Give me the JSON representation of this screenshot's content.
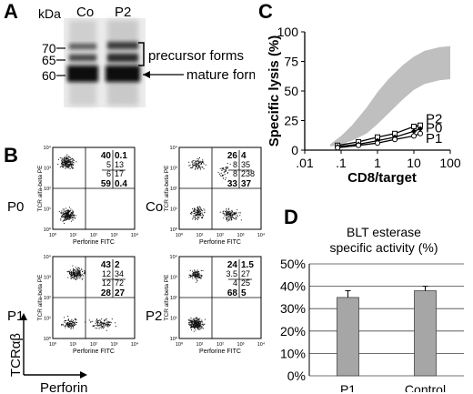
{
  "panels": {
    "a": "A",
    "b": "B",
    "c": "C",
    "d": "D"
  },
  "blot": {
    "kda_label": "kDa",
    "lanes": [
      "Co",
      "P2"
    ],
    "markers": [
      "70",
      "65",
      "60"
    ],
    "precursor_label": "precursor forms",
    "mature_label": "mature form"
  },
  "flow": {
    "x_axis_label": "Perforine FITC",
    "y_axis_label": "TCR alfa-beta PE",
    "outer_x_label": "Perforin",
    "outer_y_label": "TCRαβ",
    "tick_labels": [
      "10⁰",
      "10¹",
      "10²",
      "10³",
      "10⁴"
    ],
    "plots": [
      {
        "name": "P0",
        "q": {
          "tl": "40",
          "tr": "0.1",
          "bl": "59",
          "br": "0.4"
        },
        "inner": {
          "tl": "5",
          "tr": "13",
          "bl": "6",
          "br": "17"
        }
      },
      {
        "name": "Co",
        "q": {
          "tl": "26",
          "tr": "4",
          "bl": "33",
          "br": "37"
        },
        "inner": {
          "tl": "8",
          "tr": "35",
          "bl": "8",
          "br": "238"
        }
      },
      {
        "name": "P1",
        "q": {
          "tl": "43",
          "tr": "2",
          "bl": "28",
          "br": "27"
        },
        "inner": {
          "tl": "12",
          "tr": "34",
          "bl": "12",
          "br": "72"
        }
      },
      {
        "name": "P2",
        "q": {
          "tl": "24",
          "tr": "1.5",
          "bl": "68",
          "br": "5"
        },
        "inner": {
          "tl": "3.5",
          "tr": "27",
          "bl": "4",
          "br": "25"
        }
      }
    ]
  },
  "chart_data": [
    {
      "type": "line",
      "ylabel": "Specific lysis (%)",
      "xlabel": "CD8/target",
      "x_scale": "log",
      "xlim": [
        0.01,
        100
      ],
      "ylim": [
        0,
        100
      ],
      "x_ticks": [
        ".01",
        ".1",
        "1",
        "10",
        "100"
      ],
      "y_ticks": [
        "0",
        "25",
        "50",
        "75",
        "100"
      ],
      "normal_range": {
        "x": [
          0.05,
          0.1,
          0.2,
          0.5,
          1,
          2,
          5,
          10,
          20,
          50,
          100
        ],
        "lower": [
          3,
          5,
          8,
          14,
          22,
          31,
          43,
          51,
          56,
          59,
          60
        ],
        "upper": [
          5,
          12,
          21,
          36,
          49,
          60,
          72,
          79,
          84,
          87,
          88
        ]
      },
      "series": [
        {
          "name": "P2",
          "marker": "square-open",
          "x": [
            0.08,
            0.3,
            1,
            3,
            10,
            15
          ],
          "y": [
            4,
            7,
            11,
            14,
            20,
            21
          ]
        },
        {
          "name": "P0",
          "marker": "diamond-filled",
          "x": [
            0.08,
            0.3,
            1,
            3,
            10,
            15
          ],
          "y": [
            3,
            5,
            8,
            11,
            16,
            18
          ]
        },
        {
          "name": "P1",
          "marker": "circle-open",
          "x": [
            0.08,
            0.3,
            1,
            3,
            10,
            15
          ],
          "y": [
            2,
            4,
            6,
            9,
            12,
            14
          ]
        }
      ]
    },
    {
      "type": "bar",
      "title": "BLT esterase\nspecific activity (%)",
      "title_lines": [
        "BLT esterase",
        "specific activity (%)"
      ],
      "categories": [
        "P1",
        "Control"
      ],
      "values": [
        35,
        38
      ],
      "errors": [
        3,
        2
      ],
      "ylim": [
        0,
        50
      ],
      "y_ticks": [
        "0%",
        "10%",
        "20%",
        "30%",
        "40%",
        "50%"
      ],
      "bar_color": "#a6a6a6"
    }
  ]
}
